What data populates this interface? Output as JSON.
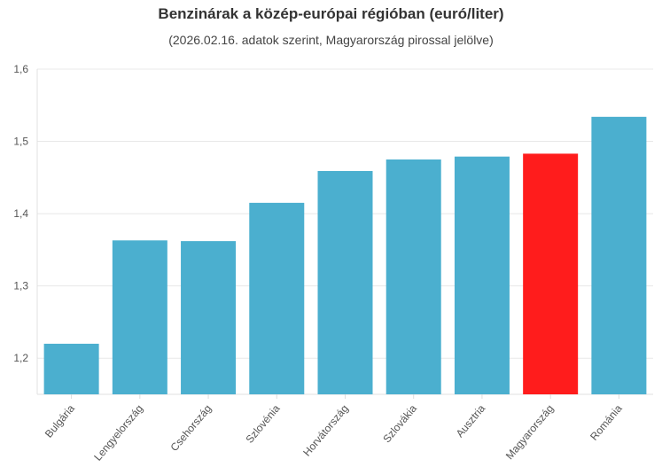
{
  "chart_data": {
    "type": "bar",
    "title": "Benzinárak a közép-európai régióban (euró/liter)",
    "subtitle": "(2026.02.16. adatok szerint, Magyarország pirossal jelölve)",
    "xlabel": "",
    "ylabel": "",
    "ylim": [
      1.15,
      1.6
    ],
    "yticks": [
      1.2,
      1.3,
      1.4,
      1.5,
      1.6
    ],
    "ytick_labels": [
      "1,2",
      "1,3",
      "1,4",
      "1,5",
      "1,6"
    ],
    "grid": true,
    "categories": [
      "Bulgária",
      "Lengyelország",
      "Csehország",
      "Szlovénia",
      "Horvátország",
      "Szlovákia",
      "Ausztria",
      "Magyarország",
      "Románia"
    ],
    "values": [
      1.22,
      1.363,
      1.362,
      1.415,
      1.459,
      1.475,
      1.479,
      1.483,
      1.534
    ],
    "highlight": "Magyarország",
    "colors": {
      "default": "#4bafcf",
      "highlight": "#ff1c1c"
    }
  }
}
